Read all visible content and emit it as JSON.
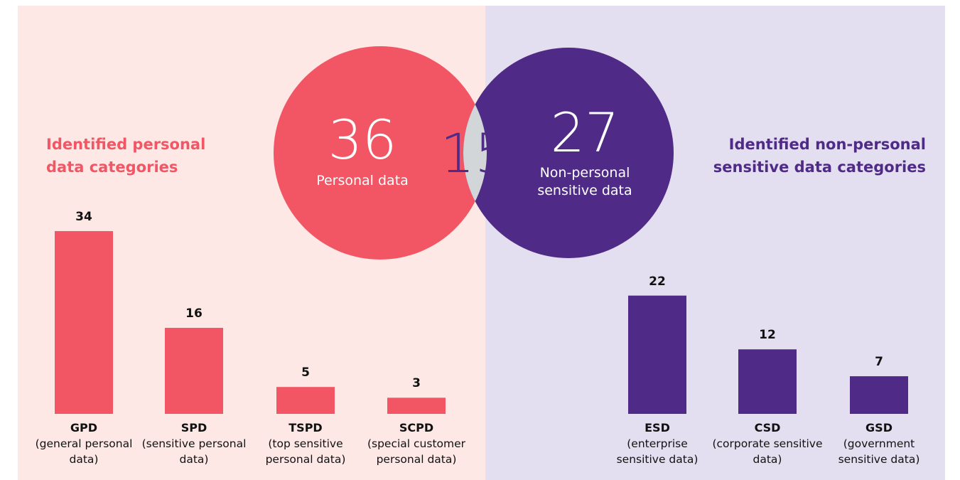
{
  "chart_data": [
    {
      "type": "venn",
      "sets": [
        {
          "label": "Personal data",
          "value": 36,
          "color": "#f25664"
        },
        {
          "label": "Non-personal sensitive data",
          "value": 27,
          "color": "#4f2a87"
        }
      ],
      "intersection": {
        "value": 15,
        "color": "#d3d6d9"
      }
    },
    {
      "type": "bar",
      "title": "Identified personal data categories",
      "color": "#f25664",
      "categories": [
        "GPD",
        "SPD",
        "TSPD",
        "SCPD"
      ],
      "descriptions": [
        "(general personal data)",
        "(sensitive personal data)",
        "(top sensitive personal data)",
        "(special customer personal data)"
      ],
      "values": [
        34,
        16,
        5,
        3
      ]
    },
    {
      "type": "bar",
      "title": "Identified non-personal sensitive data categories",
      "color": "#4f2a87",
      "categories": [
        "ESD",
        "CSD",
        "GSD"
      ],
      "descriptions": [
        "(enterprise sensitive data)",
        "(corporate sensitive data)",
        "(government sensitive data)"
      ],
      "values": [
        22,
        12,
        7
      ]
    }
  ]
}
